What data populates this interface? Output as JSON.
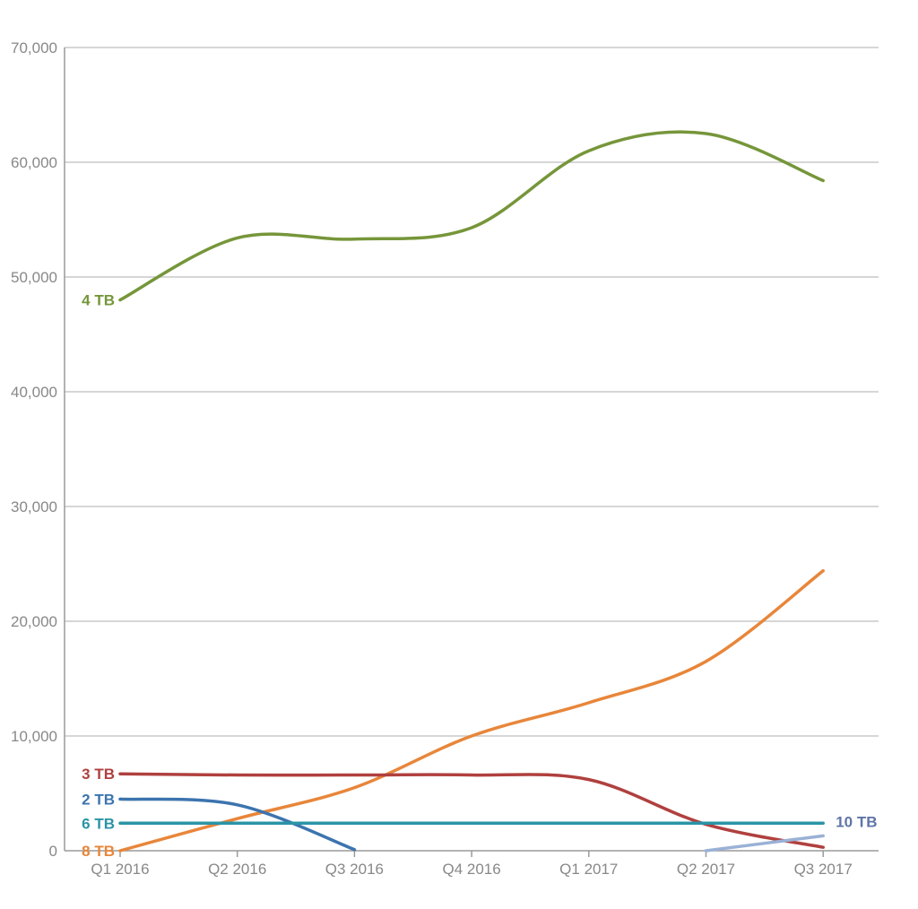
{
  "chart_data": {
    "type": "line",
    "categories": [
      "Q1 2016",
      "Q2 2016",
      "Q3 2016",
      "Q4 2016",
      "Q1 2017",
      "Q2 2017",
      "Q3 2017"
    ],
    "y_ticks": [
      "0",
      "10,000",
      "20,000",
      "30,000",
      "40,000",
      "50,000",
      "60,000",
      "70,000"
    ],
    "ylim": [
      0,
      70000
    ],
    "grid": true,
    "legend": "none (series labelled inline)",
    "series": [
      {
        "name": "4 TB",
        "color": "#76963a",
        "label_at": "start",
        "values": [
          48000,
          53400,
          53300,
          54300,
          61000,
          62500,
          58400
        ]
      },
      {
        "name": "8 TB",
        "color": "#e8863a",
        "label_at": "start",
        "values": [
          0,
          2800,
          5500,
          10000,
          12900,
          16500,
          24400
        ]
      },
      {
        "name": "3 TB",
        "color": "#b0403e",
        "label_at": "start",
        "values": [
          6700,
          6600,
          6600,
          6600,
          6200,
          2300,
          300
        ]
      },
      {
        "name": "2 TB",
        "color": "#3c74ae",
        "label_at": "start",
        "values": [
          4500,
          4000,
          100,
          null,
          null,
          null,
          null
        ]
      },
      {
        "name": "6 TB",
        "color": "#2a94a6",
        "label_at": "start",
        "values": [
          2400,
          2400,
          2400,
          2400,
          2400,
          2400,
          2400
        ]
      },
      {
        "name": "10 TB",
        "color": "#9ab1d6",
        "label_color": "#5f74a8",
        "label_at": "end",
        "values": [
          null,
          null,
          null,
          null,
          null,
          0,
          1300
        ]
      }
    ]
  }
}
